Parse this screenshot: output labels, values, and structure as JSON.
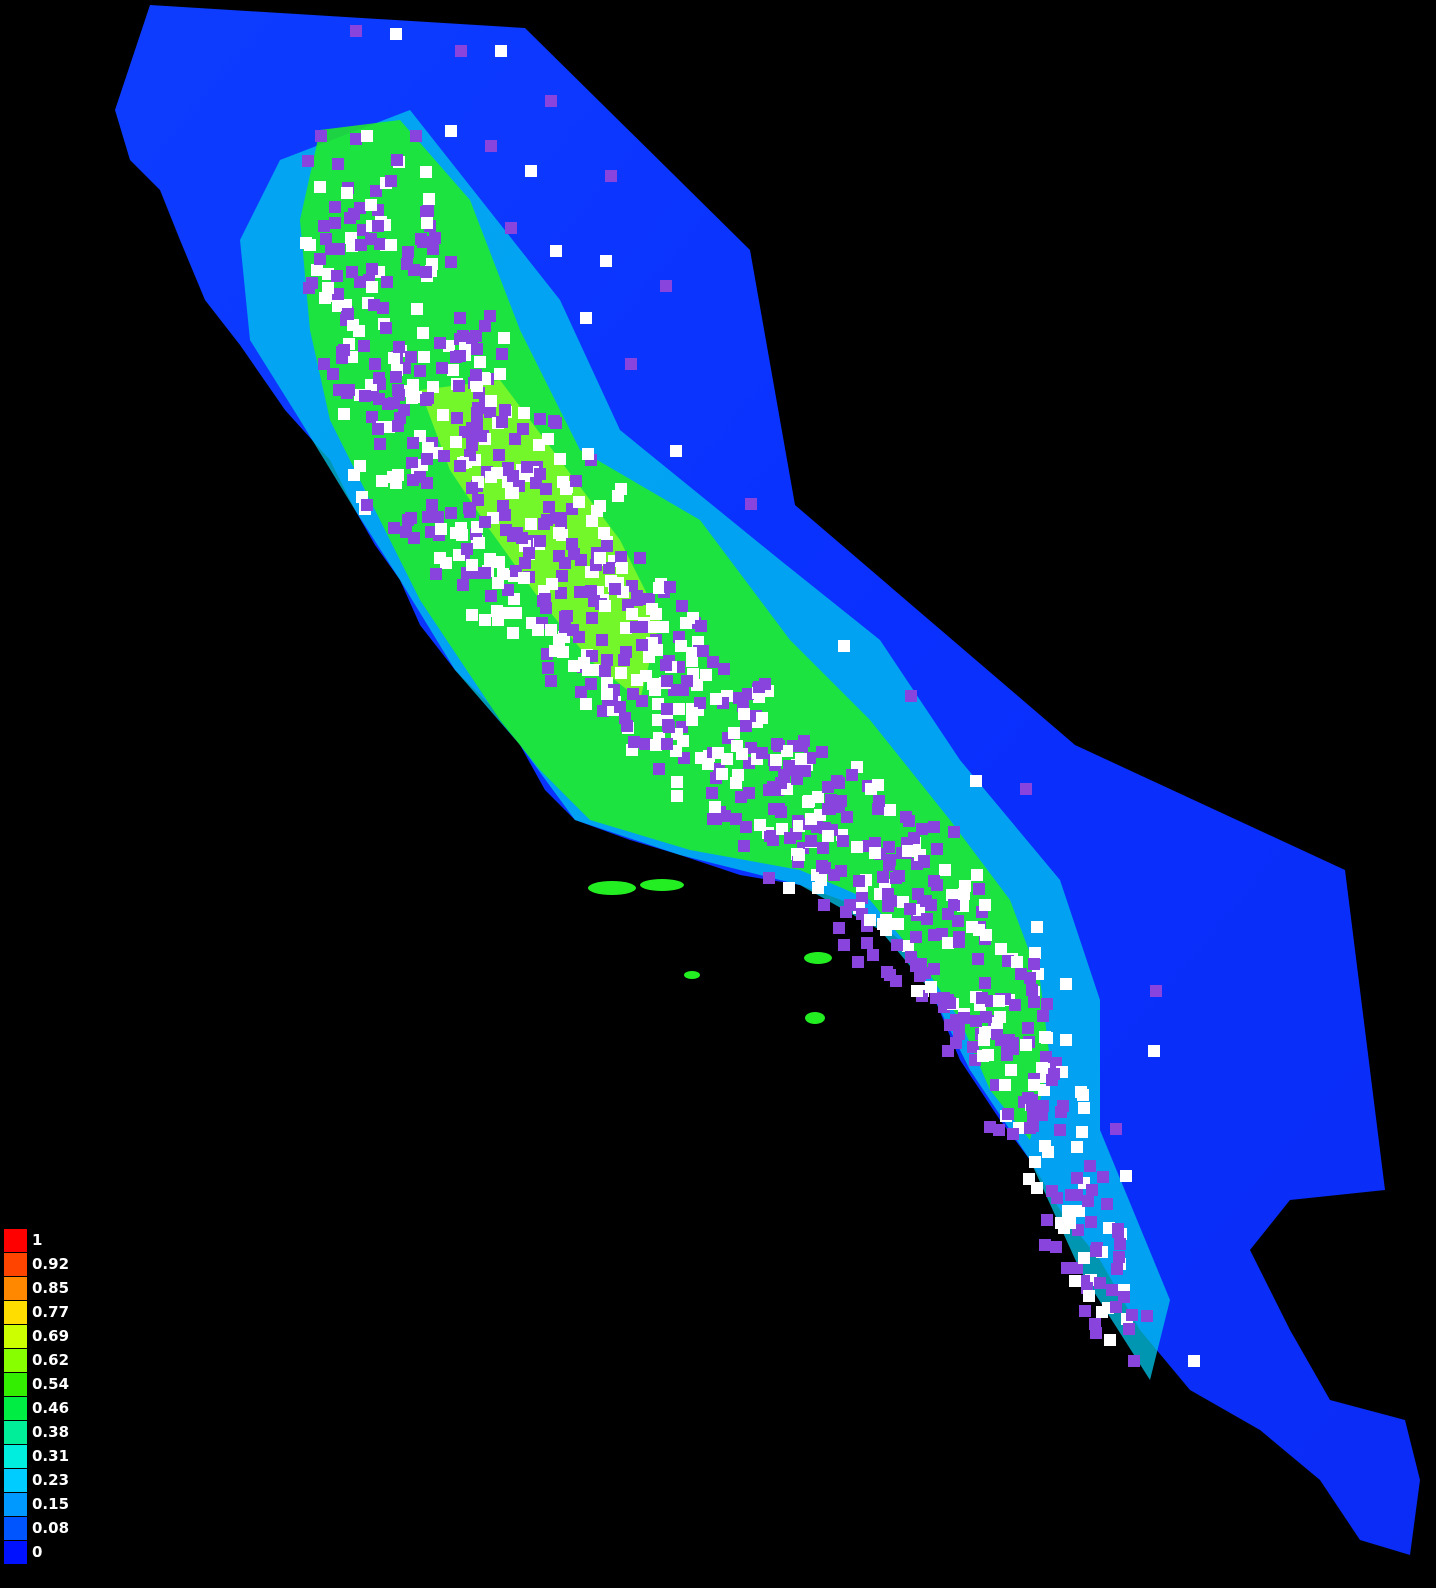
{
  "legend": {
    "items": [
      {
        "label": "1",
        "color": "#ff0000"
      },
      {
        "label": "0.92",
        "color": "#ff4400"
      },
      {
        "label": "0.85",
        "color": "#ff8800"
      },
      {
        "label": "0.77",
        "color": "#ffdd00"
      },
      {
        "label": "0.69",
        "color": "#ccff00"
      },
      {
        "label": "0.62",
        "color": "#88ff00"
      },
      {
        "label": "0.54",
        "color": "#33ee00"
      },
      {
        "label": "0.46",
        "color": "#00ee44"
      },
      {
        "label": "0.38",
        "color": "#00ee99"
      },
      {
        "label": "0.31",
        "color": "#00eedd"
      },
      {
        "label": "0.23",
        "color": "#00ccff"
      },
      {
        "label": "0.15",
        "color": "#0099ff"
      },
      {
        "label": "0.08",
        "color": "#0055ff"
      },
      {
        "label": "0",
        "color": "#0011ff"
      }
    ]
  },
  "marker_colors": {
    "purple": "#8844dd",
    "white": "#ffffff"
  },
  "background": "#000000"
}
